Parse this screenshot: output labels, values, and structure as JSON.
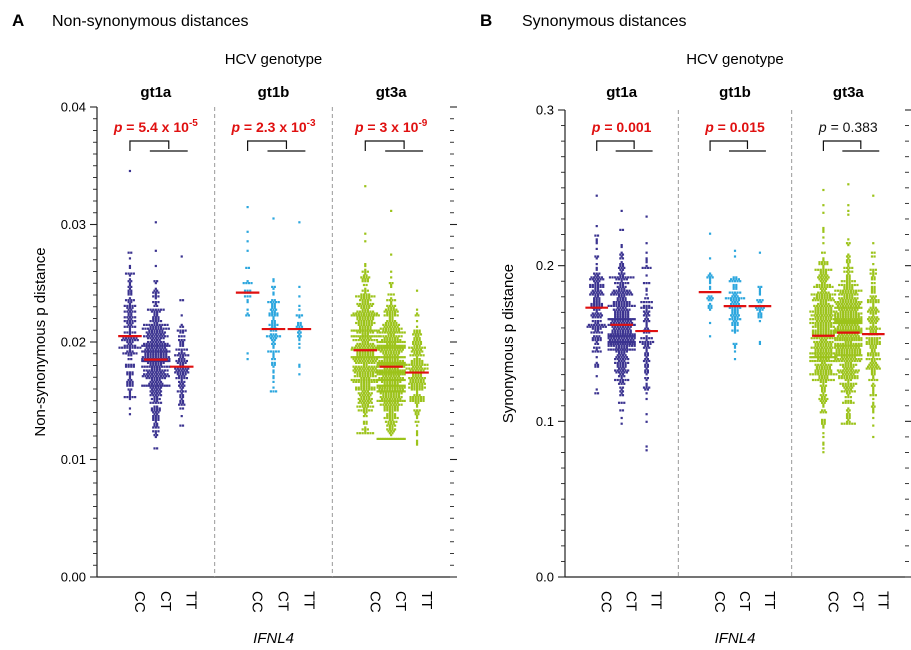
{
  "figure": {
    "xlabel": "IFNL4",
    "genotype_title": "HCV genotype"
  },
  "colors": {
    "gt1a": "#3b3390",
    "gt1b": "#2ba6de",
    "gt3a": "#9cc31a",
    "median": "#e01010",
    "axis": "#222222",
    "separator": "#999999"
  },
  "chart_data": [
    {
      "type": "scatter",
      "panel_letter": "A",
      "title": "Non-synonymous distances",
      "genotype_title": "HCV genotype",
      "ylabel": "Non-synonymous p distance",
      "xlabel": "IFNL4",
      "ylim": [
        0,
        0.04
      ],
      "yticks": [
        "0.00",
        "0.01",
        "0.02",
        "0.03",
        "0.04"
      ],
      "groups": [
        {
          "name": "gt1a",
          "color_key": "gt1a",
          "pvalue": {
            "prefix": "p",
            "text": " = 5.4 x 10",
            "exp": "-5",
            "significant": true
          },
          "categories": [
            {
              "name": "CC",
              "median": 0.0205,
              "min": 0.0138,
              "max": 0.0345,
              "n": 170
            },
            {
              "name": "CT",
              "median": 0.0185,
              "min": 0.011,
              "max": 0.0302,
              "n": 420
            },
            {
              "name": "TT",
              "median": 0.0179,
              "min": 0.0129,
              "max": 0.0272,
              "n": 120
            }
          ]
        },
        {
          "name": "gt1b",
          "color_key": "gt1b",
          "pvalue": {
            "prefix": "p",
            "text": " = 2.3 x 10",
            "exp": "-3",
            "significant": true
          },
          "categories": [
            {
              "name": "CC",
              "median": 0.0242,
              "min": 0.0185,
              "max": 0.0315,
              "n": 28
            },
            {
              "name": "CT",
              "median": 0.0211,
              "min": 0.0158,
              "max": 0.0305,
              "n": 95
            },
            {
              "name": "TT",
              "median": 0.0211,
              "min": 0.0172,
              "max": 0.0302,
              "n": 30
            }
          ]
        },
        {
          "name": "gt3a",
          "color_key": "gt3a",
          "pvalue": {
            "prefix": "p",
            "text": " = 3 x 10",
            "exp": "-9",
            "significant": true
          },
          "categories": [
            {
              "name": "CC",
              "median": 0.0193,
              "min": 0.0123,
              "max": 0.0333,
              "n": 480
            },
            {
              "name": "CT",
              "median": 0.0179,
              "min": 0.0118,
              "max": 0.0312,
              "n": 560
            },
            {
              "name": "TT",
              "median": 0.0174,
              "min": 0.0112,
              "max": 0.0243,
              "n": 200
            }
          ]
        }
      ]
    },
    {
      "type": "scatter",
      "panel_letter": "B",
      "title": "Synonymous distances",
      "genotype_title": "HCV genotype",
      "ylabel": "Synonymous p distance",
      "xlabel": "IFNL4",
      "ylim": [
        0,
        0.3
      ],
      "yticks": [
        "0.0",
        "0.1",
        "0.2",
        "0.3"
      ],
      "groups": [
        {
          "name": "gt1a",
          "color_key": "gt1a",
          "pvalue": {
            "prefix": "p",
            "text": " = 0.001",
            "exp": "",
            "significant": true
          },
          "categories": [
            {
              "name": "CC",
              "median": 0.173,
              "min": 0.118,
              "max": 0.245,
              "n": 170
            },
            {
              "name": "CT",
              "median": 0.162,
              "min": 0.098,
              "max": 0.235,
              "n": 420
            },
            {
              "name": "TT",
              "median": 0.158,
              "min": 0.082,
              "max": 0.232,
              "n": 120
            }
          ]
        },
        {
          "name": "gt1b",
          "color_key": "gt1b",
          "pvalue": {
            "prefix": "p",
            "text": " = 0.015",
            "exp": "",
            "significant": true
          },
          "categories": [
            {
              "name": "CC",
              "median": 0.183,
              "min": 0.155,
              "max": 0.22,
              "n": 28
            },
            {
              "name": "CT",
              "median": 0.174,
              "min": 0.14,
              "max": 0.21,
              "n": 95
            },
            {
              "name": "TT",
              "median": 0.174,
              "min": 0.15,
              "max": 0.208,
              "n": 30
            }
          ]
        },
        {
          "name": "gt3a",
          "color_key": "gt3a",
          "pvalue": {
            "prefix": "p",
            "text": " = 0.383",
            "exp": "",
            "significant": false
          },
          "categories": [
            {
              "name": "CC",
              "median": 0.155,
              "min": 0.08,
              "max": 0.248,
              "n": 480
            },
            {
              "name": "CT",
              "median": 0.157,
              "min": 0.098,
              "max": 0.252,
              "n": 560
            },
            {
              "name": "TT",
              "median": 0.156,
              "min": 0.09,
              "max": 0.245,
              "n": 200
            }
          ]
        }
      ]
    }
  ]
}
